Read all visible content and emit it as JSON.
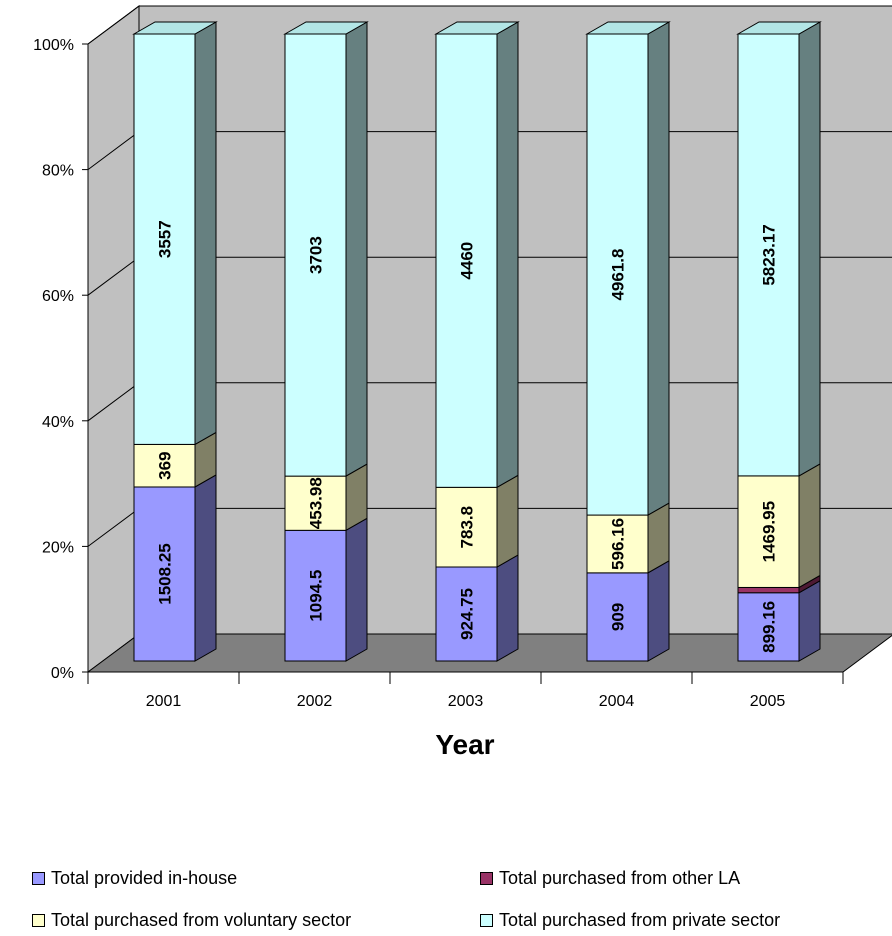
{
  "chart_data": {
    "type": "bar",
    "stacked": true,
    "normalized": true,
    "three_d": true,
    "categories": [
      "2001",
      "2002",
      "2003",
      "2004",
      "2005"
    ],
    "xlabel": "Year",
    "ylabel": "",
    "ylim": [
      0,
      100
    ],
    "yticks": [
      "0%",
      "20%",
      "40%",
      "60%",
      "80%",
      "100%"
    ],
    "legend_position": "bottom",
    "grid": true,
    "series": [
      {
        "name": "Total provided in-house",
        "color": "#9999ff",
        "side_color": "#4d4d80",
        "values": [
          1508.25,
          1094.5,
          924.75,
          909,
          899.16
        ],
        "labels": [
          "1508.25",
          "1094.5",
          "924.75",
          "909",
          "899.16"
        ]
      },
      {
        "name": "Total purchased from other LA",
        "color": "#993366",
        "side_color": "#4d1a33",
        "values": [
          0,
          0,
          0,
          0,
          70
        ],
        "labels": [
          "",
          "",
          "",
          "",
          ""
        ]
      },
      {
        "name": "Total purchased from voluntary sector",
        "color": "#ffffcc",
        "side_color": "#808066",
        "values": [
          369,
          453.98,
          783.8,
          596.16,
          1469.95
        ],
        "labels": [
          "369",
          "453.98",
          "783.8",
          "596.16",
          "1469.95"
        ]
      },
      {
        "name": "Total purchased from private sector",
        "color": "#ccffff",
        "side_color": "#668080",
        "values": [
          3557,
          3703,
          4460,
          4961.8,
          5823.17
        ],
        "labels": [
          "3557",
          "3703",
          "4460",
          "4961.8",
          "5823.17"
        ]
      }
    ],
    "colors": {
      "wall": "#c0c0c0",
      "floor": "#808080",
      "top_face": "#b3e6e6"
    }
  }
}
